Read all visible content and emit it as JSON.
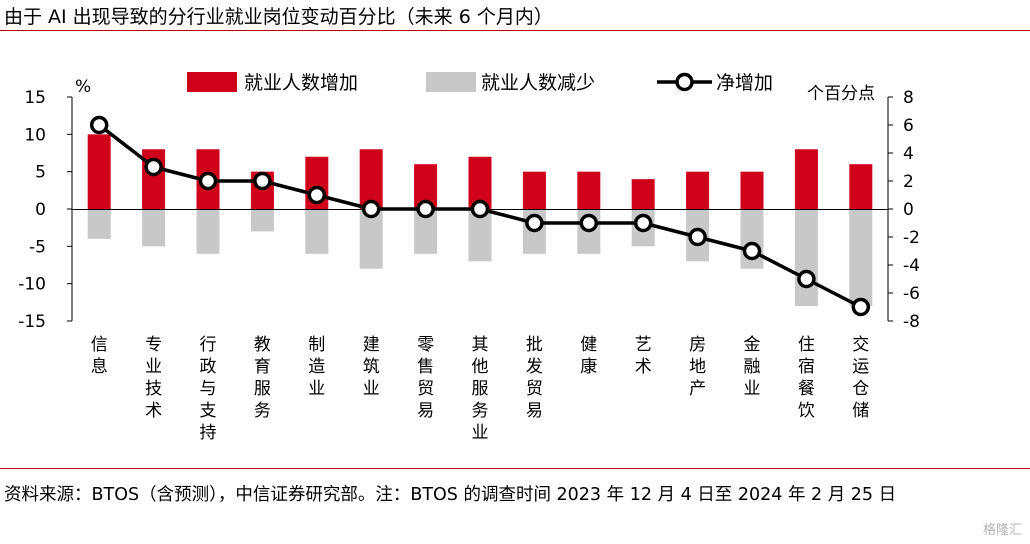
{
  "title": "由于 AI 出现导致的分行业就业岗位变动百分比（未来 6 个月内）",
  "source": "资料来源：BTOS（含预测），中信证券研究部。注：BTOS 的调查时间 2023 年 12 月 4 日至 2024 年 2 月 25 日",
  "watermark": "格隆汇",
  "colors": {
    "increase": "#d0021b",
    "decrease": "#c8c8c8",
    "net": "#000000",
    "rule": "#b40010"
  },
  "chart_data": {
    "type": "bar",
    "categories": [
      "信息",
      "专业技术",
      "行政与支持",
      "教育服务",
      "制造业",
      "建筑业",
      "零售贸易",
      "其他服务业",
      "批发贸易",
      "健康",
      "艺术",
      "房地产",
      "金融业",
      "住宿餐饮",
      "交运仓储"
    ],
    "series": [
      {
        "name": "就业人数增加",
        "axis": "left",
        "type": "bar",
        "values": [
          10,
          8,
          8,
          5,
          7,
          8,
          6,
          7,
          5,
          5,
          4,
          5,
          5,
          8,
          6
        ]
      },
      {
        "name": "就业人数减少",
        "axis": "left",
        "type": "bar",
        "values": [
          -4,
          -5,
          -6,
          -3,
          -6,
          -8,
          -6,
          -7,
          -6,
          -6,
          -5,
          -7,
          -8,
          -13,
          -13
        ]
      },
      {
        "name": "净增加",
        "axis": "right",
        "type": "line",
        "values": [
          6,
          3,
          2,
          2,
          1,
          0,
          0,
          0,
          -1,
          -1,
          -1,
          -2,
          -3,
          -5,
          -7
        ]
      }
    ],
    "y_left": {
      "label": "%",
      "ylim": [
        -15,
        15
      ],
      "ticks": [
        15,
        10,
        5,
        0,
        -5,
        -10,
        -15
      ]
    },
    "y_right": {
      "label": "个百分点",
      "ylim": [
        -8,
        8
      ],
      "ticks": [
        8,
        6,
        4,
        2,
        0,
        -2,
        -4,
        -6,
        -8
      ]
    },
    "legend": {
      "position": "top"
    },
    "grid": false
  }
}
